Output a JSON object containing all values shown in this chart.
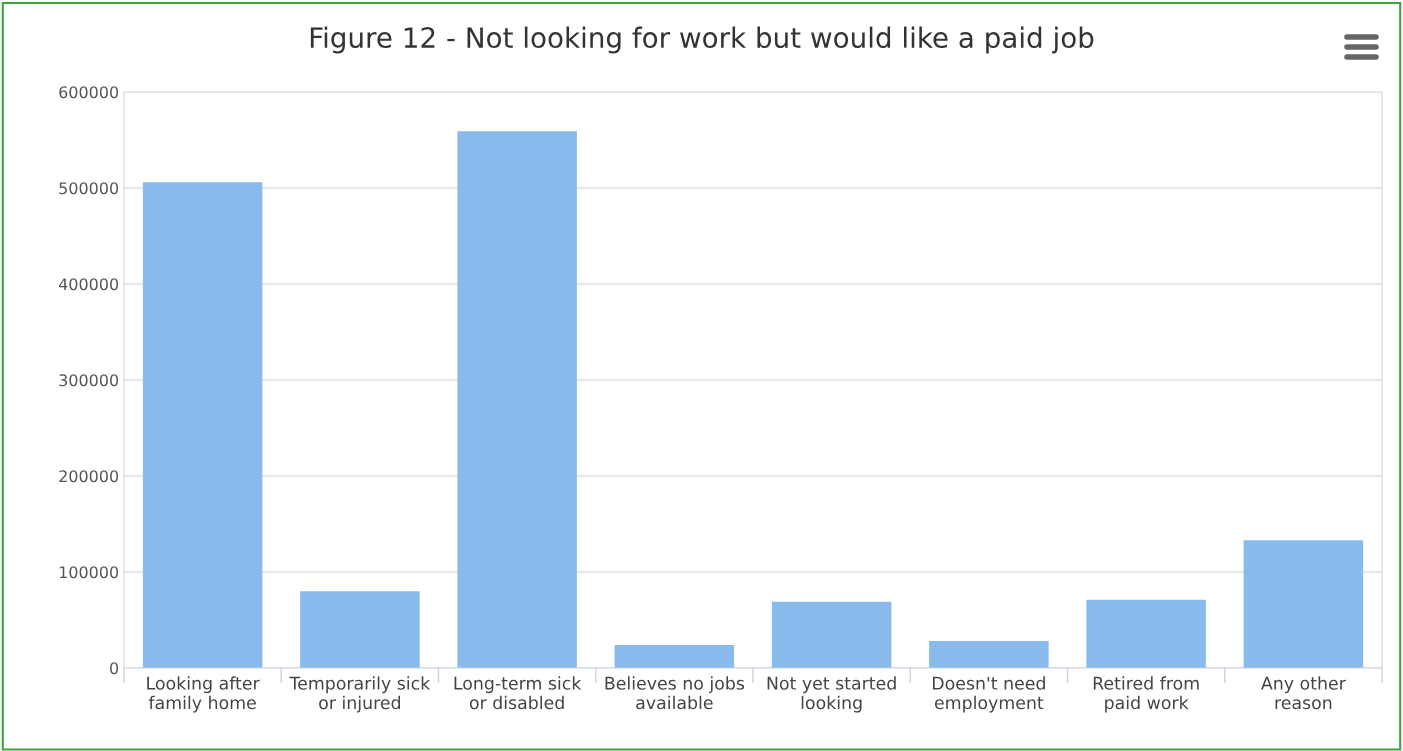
{
  "chart_data": {
    "type": "bar",
    "title": "Figure 12 - Not looking for work but would like a paid job",
    "categories": [
      "Looking after\nfamily home",
      "Temporarily sick\nor injured",
      "Long-term sick\nor disabled",
      "Believes no jobs\navailable",
      "Not yet started\nlooking",
      "Doesn't need\nemployment",
      "Retired from\npaid work",
      "Any other\nreason"
    ],
    "values": [
      506000,
      80000,
      559000,
      24000,
      69000,
      28000,
      71000,
      133000
    ],
    "color": "#88bbec",
    "ylim": [
      0,
      600000
    ],
    "yticks": [
      0,
      100000,
      200000,
      300000,
      400000,
      500000,
      600000
    ],
    "grid": "y",
    "legend": false
  }
}
